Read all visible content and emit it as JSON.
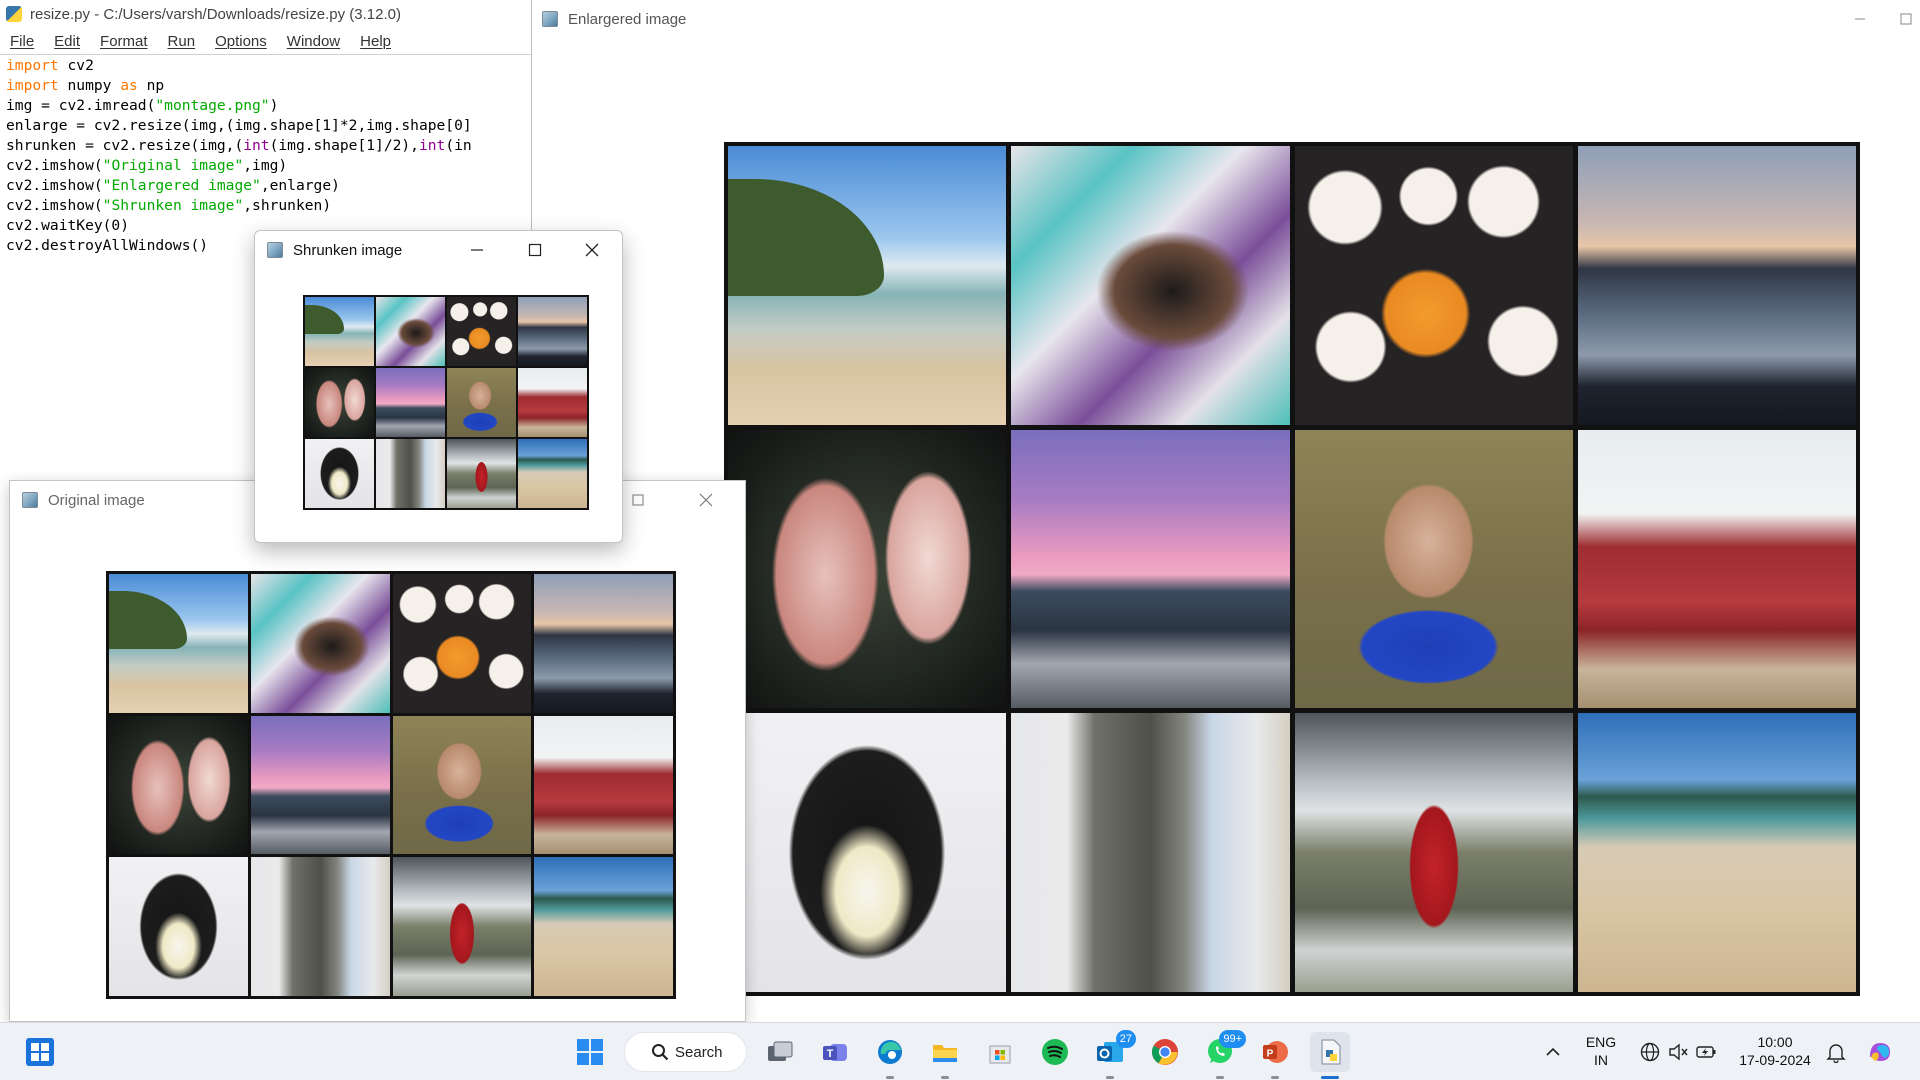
{
  "idle": {
    "title": "resize.py - C:/Users/varsh/Downloads/resize.py (3.12.0)",
    "menu": [
      "File",
      "Edit",
      "Format",
      "Run",
      "Options",
      "Window",
      "Help"
    ],
    "code_lines": [
      [
        {
          "t": "import",
          "c": "kw"
        },
        {
          "t": " cv2"
        }
      ],
      [
        {
          "t": "import",
          "c": "kw"
        },
        {
          "t": " numpy "
        },
        {
          "t": "as",
          "c": "kw"
        },
        {
          "t": " np"
        }
      ],
      [
        {
          "t": "img = cv2.imread("
        },
        {
          "t": "\"montage.png\"",
          "c": "str"
        },
        {
          "t": ")"
        }
      ],
      [
        {
          "t": "enlarge = cv2.resize(img,(img.shape[1]*2,img.shape[0]"
        }
      ],
      [
        {
          "t": "shrunken = cv2.resize(img,("
        },
        {
          "t": "int",
          "c": "bi"
        },
        {
          "t": "(img.shape[1]/2),"
        },
        {
          "t": "int",
          "c": "bi"
        },
        {
          "t": "(in"
        }
      ],
      [
        {
          "t": "cv2.imshow("
        },
        {
          "t": "\"Original image\"",
          "c": "str"
        },
        {
          "t": ",img)"
        }
      ],
      [
        {
          "t": "cv2.imshow("
        },
        {
          "t": "\"Enlargered image\"",
          "c": "str"
        },
        {
          "t": ",enlarge)"
        }
      ],
      [
        {
          "t": "cv2.imshow("
        },
        {
          "t": "\"Shrunken image\"",
          "c": "str"
        },
        {
          "t": ",shrunken)"
        }
      ],
      [
        {
          "t": "cv2.waitKey(0)"
        }
      ],
      [
        {
          "t": "cv2.destroyAllWindows()"
        }
      ]
    ]
  },
  "windows": {
    "enlarged": {
      "title": "Enlargered image"
    },
    "original": {
      "title": "Original image"
    },
    "shrunken": {
      "title": "Shrunken image"
    }
  },
  "montage_tiles": [
    "beach",
    "cat",
    "cupcakes",
    "lake",
    "fish",
    "sunset",
    "baby",
    "couch",
    "penguin",
    "shirt",
    "hydrant",
    "sand-beach"
  ],
  "taskbar": {
    "search_label": "Search",
    "items": [
      {
        "name": "task-view-icon"
      },
      {
        "name": "teams-icon"
      },
      {
        "name": "edge-icon"
      },
      {
        "name": "file-explorer-icon"
      },
      {
        "name": "microsoft-store-icon"
      },
      {
        "name": "spotify-icon"
      },
      {
        "name": "outlook-icon",
        "badge": "27"
      },
      {
        "name": "chrome-icon"
      },
      {
        "name": "whatsapp-icon",
        "badge": "99+"
      },
      {
        "name": "powerpoint-icon"
      },
      {
        "name": "idle-icon",
        "active": true
      }
    ],
    "language": {
      "line1": "ENG",
      "line2": "IN"
    },
    "clock": {
      "time": "10:00",
      "date": "17-09-2024"
    },
    "accent": "#1f6fd1"
  }
}
